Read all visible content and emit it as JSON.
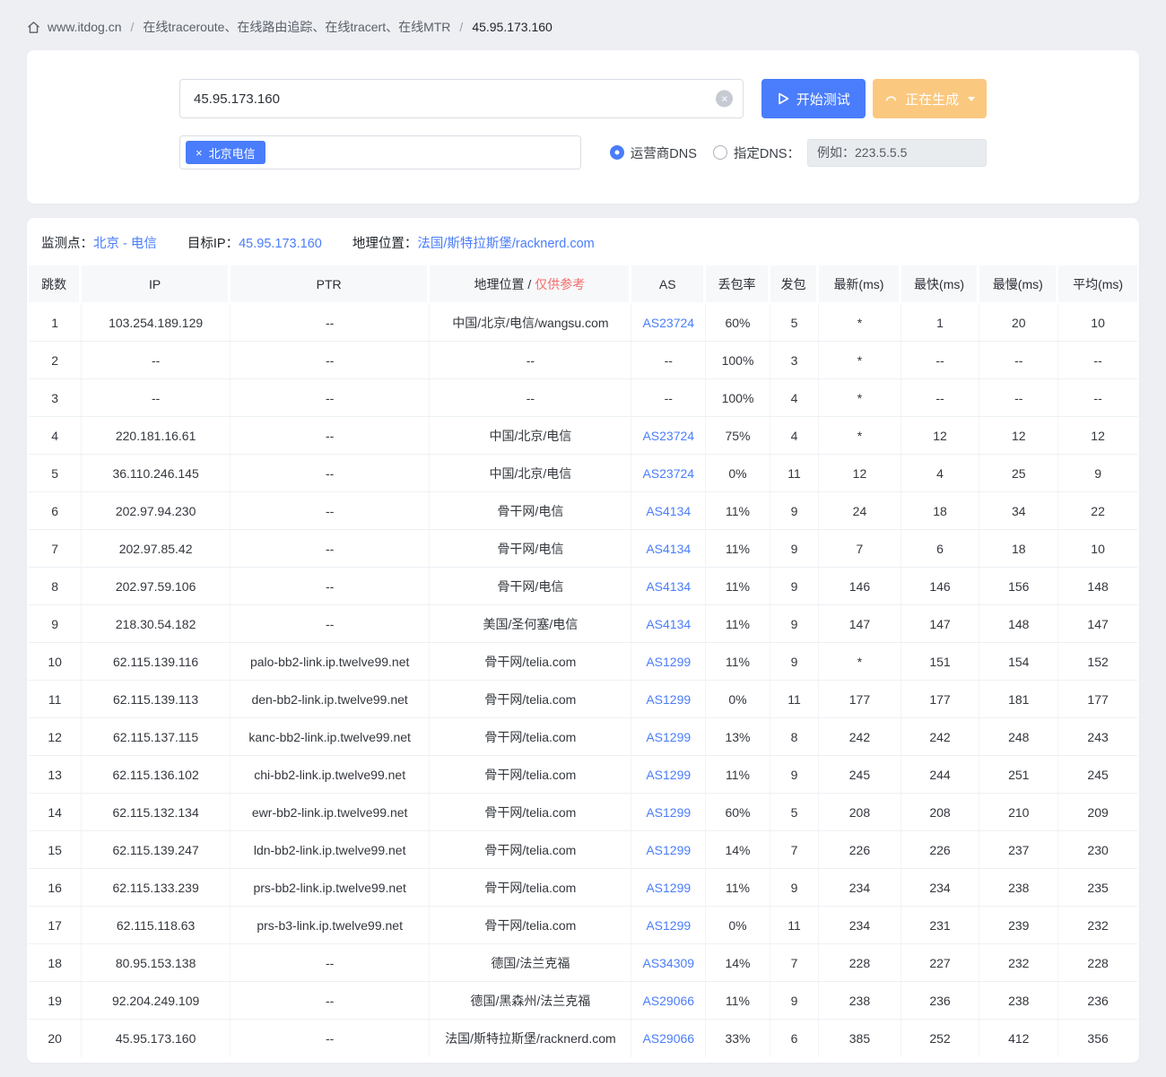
{
  "breadcrumb": {
    "site": "www.itdog.cn",
    "section": "在线traceroute、在线路由追踪、在线tracert、在线MTR",
    "current": "45.95.173.160",
    "separator": "/"
  },
  "form": {
    "target_input": "45.95.173.160",
    "start_button": "开始测试",
    "generating_button": "正在生成",
    "node_tag": "北京电信",
    "tag_close": "×",
    "clear_icon": "×",
    "dns_radio_isp": "运营商DNS",
    "dns_radio_custom": "指定DNS：",
    "dns_placeholder": "例如：223.5.5.5"
  },
  "result_info": {
    "node_label": "监测点：",
    "node_value": "北京 - 电信",
    "target_label": "目标IP：",
    "target_value": "45.95.173.160",
    "location_label": "地理位置：",
    "location_value": "法国/斯特拉斯堡/racknerd.com"
  },
  "colors": {
    "primary_blue": "#4a7dfb",
    "warning_orange": "#fbc87f",
    "link_blue": "#4a7dfb",
    "danger_red": "#f56c6c",
    "page_background": "#edeff3"
  },
  "table": {
    "headers": [
      "跳数",
      "IP",
      "PTR",
      {
        "main": "地理位置",
        "sep": " / ",
        "note": "仅供参考"
      },
      "AS",
      "丢包率",
      "发包",
      "最新(ms)",
      "最快(ms)",
      "最慢(ms)",
      "平均(ms)"
    ],
    "column_keys": [
      "hop",
      "ip",
      "ptr",
      "geo",
      "as",
      "loss",
      "sent",
      "latest",
      "fastest",
      "slowest",
      "avg"
    ],
    "rows": [
      [
        "1",
        "103.254.189.129",
        "--",
        "中国/北京/电信/wangsu.com",
        "AS23724",
        "60%",
        "5",
        "*",
        "1",
        "20",
        "10"
      ],
      [
        "2",
        "--",
        "--",
        "--",
        "--",
        "100%",
        "3",
        "*",
        "--",
        "--",
        "--"
      ],
      [
        "3",
        "--",
        "--",
        "--",
        "--",
        "100%",
        "4",
        "*",
        "--",
        "--",
        "--"
      ],
      [
        "4",
        "220.181.16.61",
        "--",
        "中国/北京/电信",
        "AS23724",
        "75%",
        "4",
        "*",
        "12",
        "12",
        "12"
      ],
      [
        "5",
        "36.110.246.145",
        "--",
        "中国/北京/电信",
        "AS23724",
        "0%",
        "11",
        "12",
        "4",
        "25",
        "9"
      ],
      [
        "6",
        "202.97.94.230",
        "--",
        "骨干网/电信",
        "AS4134",
        "11%",
        "9",
        "24",
        "18",
        "34",
        "22"
      ],
      [
        "7",
        "202.97.85.42",
        "--",
        "骨干网/电信",
        "AS4134",
        "11%",
        "9",
        "7",
        "6",
        "18",
        "10"
      ],
      [
        "8",
        "202.97.59.106",
        "--",
        "骨干网/电信",
        "AS4134",
        "11%",
        "9",
        "146",
        "146",
        "156",
        "148"
      ],
      [
        "9",
        "218.30.54.182",
        "--",
        "美国/圣何塞/电信",
        "AS4134",
        "11%",
        "9",
        "147",
        "147",
        "148",
        "147"
      ],
      [
        "10",
        "62.115.139.116",
        "palo-bb2-link.ip.twelve99.net",
        "骨干网/telia.com",
        "AS1299",
        "11%",
        "9",
        "*",
        "151",
        "154",
        "152"
      ],
      [
        "11",
        "62.115.139.113",
        "den-bb2-link.ip.twelve99.net",
        "骨干网/telia.com",
        "AS1299",
        "0%",
        "11",
        "177",
        "177",
        "181",
        "177"
      ],
      [
        "12",
        "62.115.137.115",
        "kanc-bb2-link.ip.twelve99.net",
        "骨干网/telia.com",
        "AS1299",
        "13%",
        "8",
        "242",
        "242",
        "248",
        "243"
      ],
      [
        "13",
        "62.115.136.102",
        "chi-bb2-link.ip.twelve99.net",
        "骨干网/telia.com",
        "AS1299",
        "11%",
        "9",
        "245",
        "244",
        "251",
        "245"
      ],
      [
        "14",
        "62.115.132.134",
        "ewr-bb2-link.ip.twelve99.net",
        "骨干网/telia.com",
        "AS1299",
        "60%",
        "5",
        "208",
        "208",
        "210",
        "209"
      ],
      [
        "15",
        "62.115.139.247",
        "ldn-bb2-link.ip.twelve99.net",
        "骨干网/telia.com",
        "AS1299",
        "14%",
        "7",
        "226",
        "226",
        "237",
        "230"
      ],
      [
        "16",
        "62.115.133.239",
        "prs-bb2-link.ip.twelve99.net",
        "骨干网/telia.com",
        "AS1299",
        "11%",
        "9",
        "234",
        "234",
        "238",
        "235"
      ],
      [
        "17",
        "62.115.118.63",
        "prs-b3-link.ip.twelve99.net",
        "骨干网/telia.com",
        "AS1299",
        "0%",
        "11",
        "234",
        "231",
        "239",
        "232"
      ],
      [
        "18",
        "80.95.153.138",
        "--",
        "德国/法兰克福",
        "AS34309",
        "14%",
        "7",
        "228",
        "227",
        "232",
        "228"
      ],
      [
        "19",
        "92.204.249.109",
        "--",
        "德国/黑森州/法兰克福",
        "AS29066",
        "11%",
        "9",
        "238",
        "236",
        "238",
        "236"
      ],
      [
        "20",
        "45.95.173.160",
        "--",
        "法国/斯特拉斯堡/racknerd.com",
        "AS29066",
        "33%",
        "6",
        "385",
        "252",
        "412",
        "356"
      ]
    ]
  }
}
